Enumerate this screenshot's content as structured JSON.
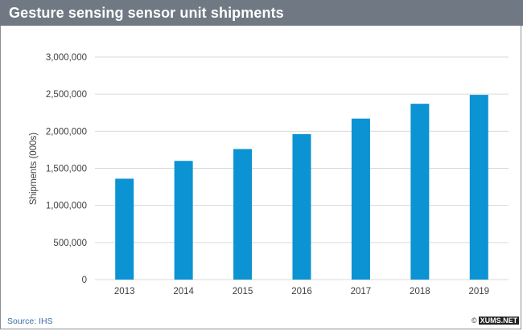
{
  "chart_data": {
    "type": "bar",
    "title": "Gesture sensing sensor unit shipments",
    "xlabel": "",
    "ylabel": "Shipments (000s)",
    "categories": [
      "2013",
      "2014",
      "2015",
      "2016",
      "2017",
      "2018",
      "2019"
    ],
    "values": [
      1360000,
      1600000,
      1760000,
      1960000,
      2170000,
      2370000,
      2490000
    ],
    "ylim": [
      0,
      3000000
    ],
    "yticks": [
      0,
      500000,
      1000000,
      1500000,
      2000000,
      2500000,
      3000000
    ],
    "ytick_labels": [
      "0",
      "500,000",
      "1,000,000",
      "1,500,000",
      "2,000,000",
      "2,500,000",
      "3,000,000"
    ],
    "grid": true,
    "bar_color": "#0b93d3"
  },
  "footer": {
    "source": "Source: IHS",
    "copyright_symbol": "©",
    "brand": "XUMS.NET"
  },
  "colors": {
    "header": "#707983",
    "grid": "#d9d9d9",
    "axis_text": "#404040"
  }
}
